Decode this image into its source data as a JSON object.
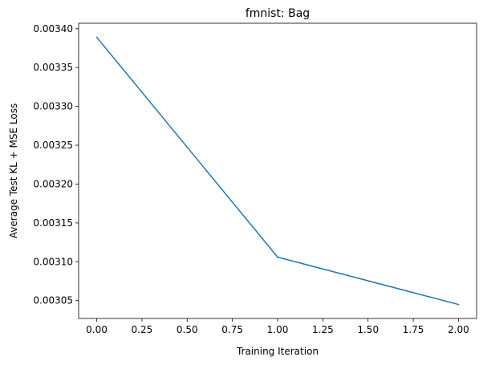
{
  "chart_data": {
    "type": "line",
    "title": "fmnist: Bag",
    "xlabel": "Training Iteration",
    "ylabel": "Average Test KL + MSE Loss",
    "xlim": [
      -0.1,
      2.1
    ],
    "ylim": [
      0.003027,
      0.003407
    ],
    "x_ticks": [
      0.0,
      0.25,
      0.5,
      0.75,
      1.0,
      1.25,
      1.5,
      1.75,
      2.0
    ],
    "x_tick_labels": [
      "0.00",
      "0.25",
      "0.50",
      "0.75",
      "1.00",
      "1.25",
      "1.50",
      "1.75",
      "2.00"
    ],
    "y_ticks": [
      0.00305,
      0.0031,
      0.00315,
      0.0032,
      0.00325,
      0.0033,
      0.00335,
      0.0034
    ],
    "y_tick_labels": [
      "0.00305",
      "0.00310",
      "0.00315",
      "0.00320",
      "0.00325",
      "0.00330",
      "0.00335",
      "0.00340"
    ],
    "grid": false,
    "series": [
      {
        "x": [
          0,
          1,
          2
        ],
        "values": [
          0.003389,
          0.003106,
          0.003045
        ],
        "color": "#1f77b4"
      }
    ]
  }
}
